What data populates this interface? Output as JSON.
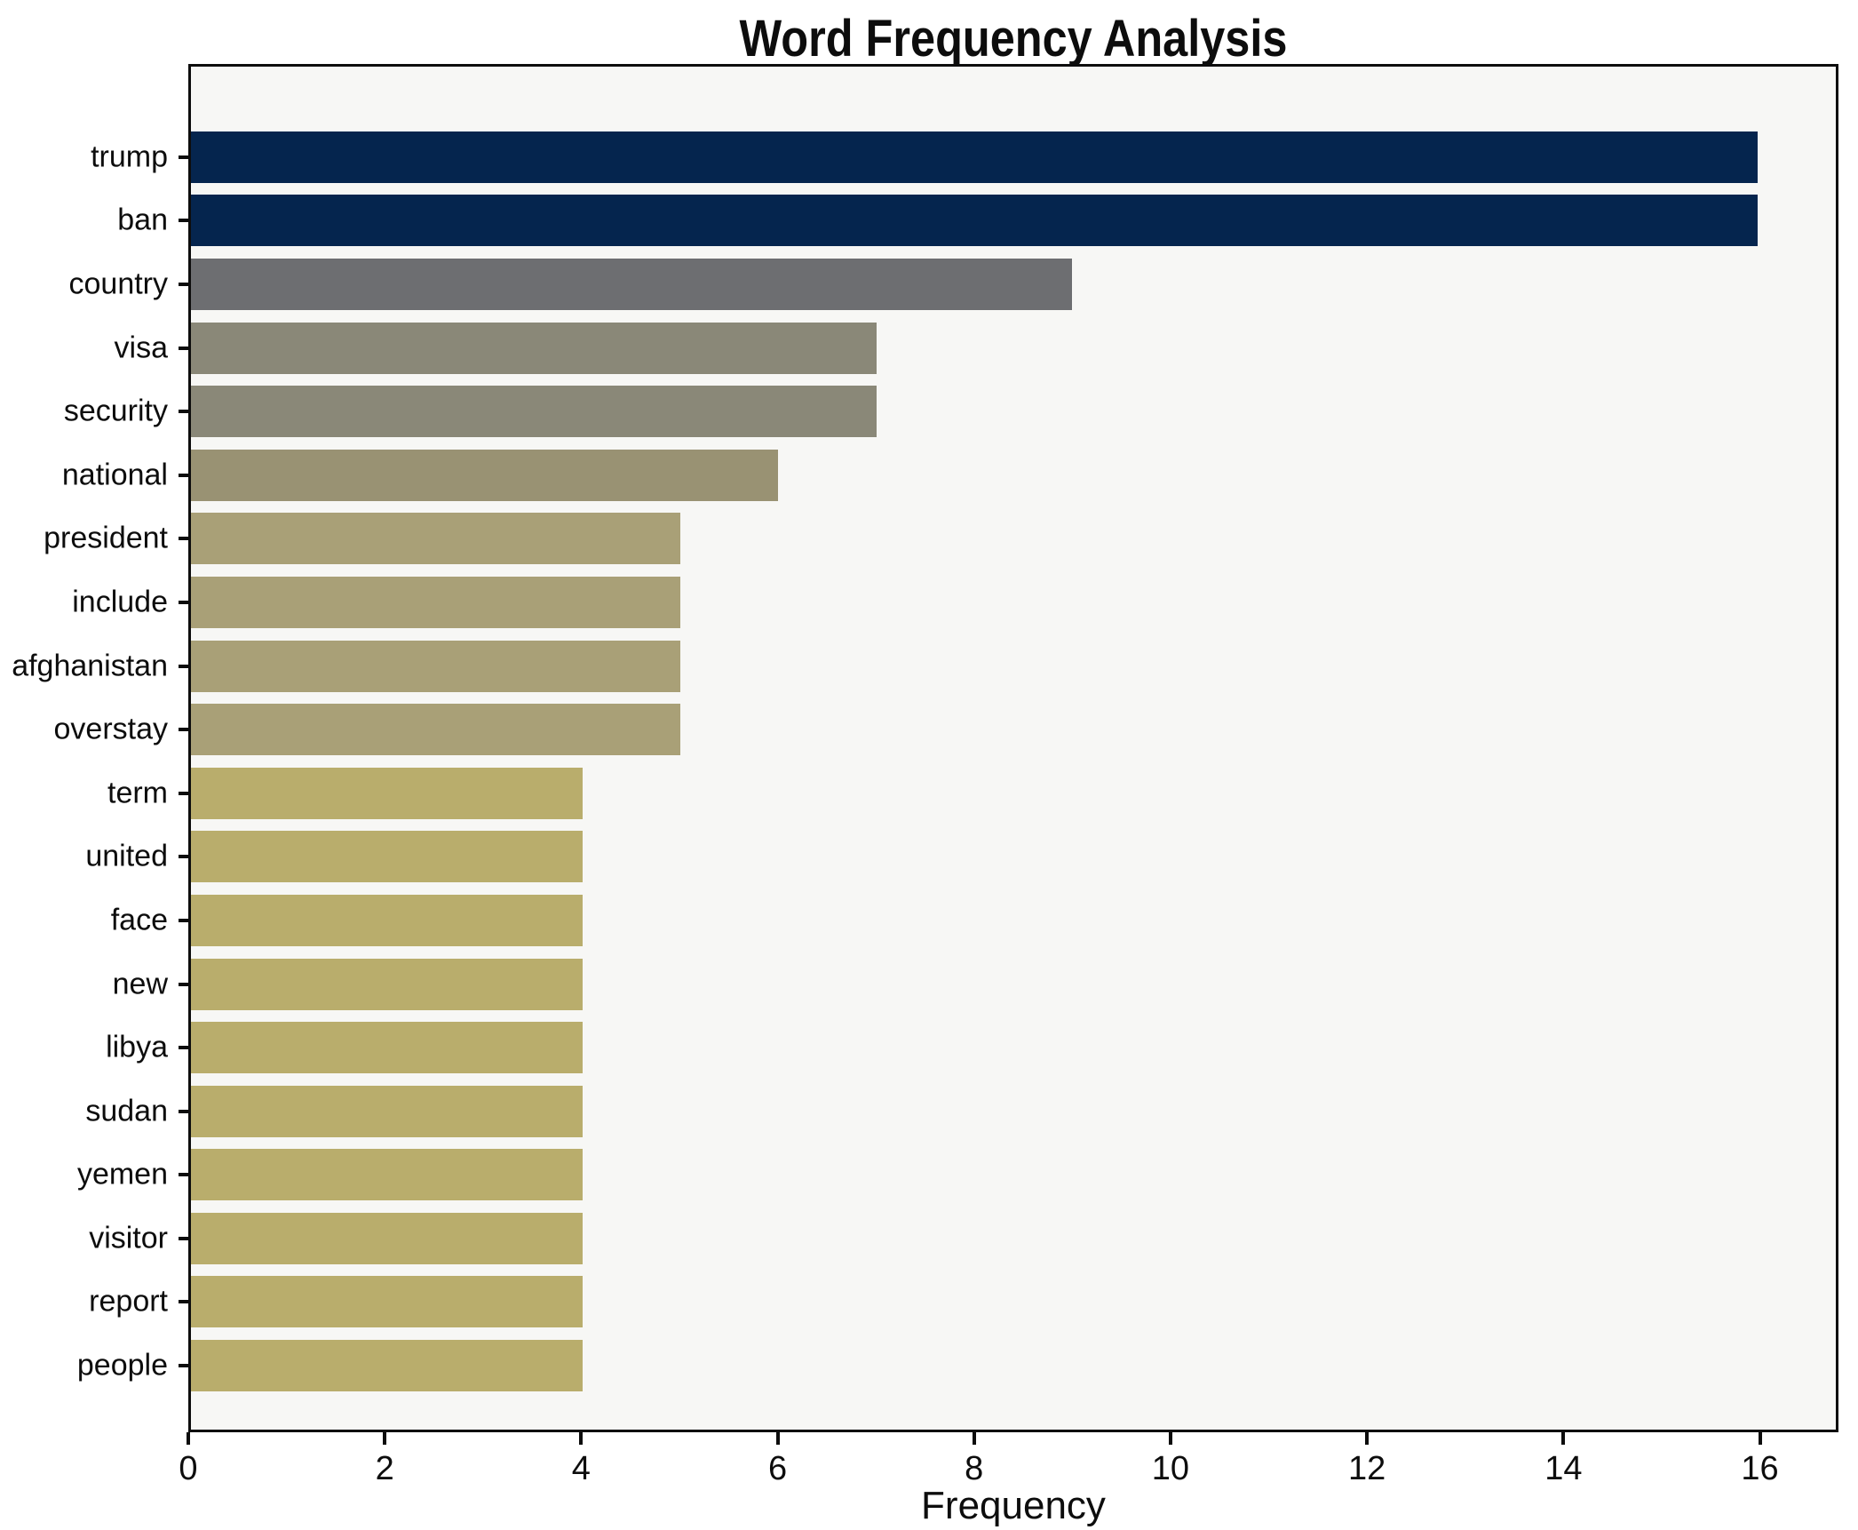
{
  "figure": {
    "title": "Word Frequency Analysis",
    "xlabel": "Frequency"
  },
  "chart_data": {
    "type": "bar",
    "orientation": "horizontal",
    "title": "Word Frequency Analysis",
    "xlabel": "Frequency",
    "ylabel": "",
    "grid": false,
    "legend_position": "none",
    "plot_background": "#f7f7f5",
    "xlim": [
      0,
      16.8
    ],
    "x_ticks": [
      0,
      2,
      4,
      6,
      8,
      10,
      12,
      14,
      16
    ],
    "categories": [
      "trump",
      "ban",
      "country",
      "visa",
      "security",
      "national",
      "president",
      "include",
      "afghanistan",
      "overstay",
      "term",
      "united",
      "face",
      "new",
      "libya",
      "sudan",
      "yemen",
      "visitor",
      "report",
      "people"
    ],
    "values": [
      16,
      16,
      9,
      7,
      7,
      6,
      5,
      5,
      5,
      5,
      4,
      4,
      4,
      4,
      4,
      4,
      4,
      4,
      4,
      4
    ],
    "bar_colors": [
      "#05254e",
      "#05254e",
      "#6d6e71",
      "#8a8878",
      "#8a8878",
      "#999273",
      "#a9a077",
      "#a9a077",
      "#a9a077",
      "#a9a077",
      "#b9ad6c",
      "#b9ad6c",
      "#b9ad6c",
      "#b9ad6c",
      "#b9ad6c",
      "#b9ad6c",
      "#b9ad6c",
      "#b9ad6c",
      "#b9ad6c",
      "#b9ad6c"
    ]
  }
}
